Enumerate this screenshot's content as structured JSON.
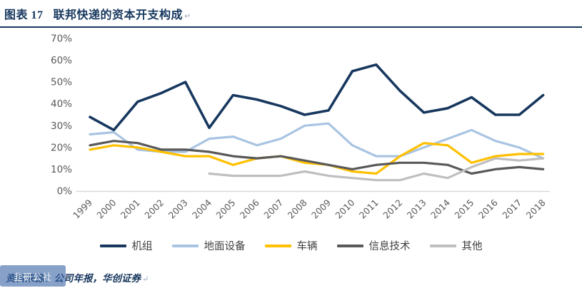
{
  "header": {
    "label": "图表  17",
    "title": "联邦快递的资本开支构成",
    "paragraph_mark": "↵",
    "accent_color": "#17375e"
  },
  "chart_data": {
    "type": "line",
    "title": "联邦快递的资本开支构成",
    "x": [
      1999,
      2000,
      2001,
      2002,
      2003,
      2004,
      2005,
      2006,
      2007,
      2008,
      2009,
      2010,
      2011,
      2012,
      2013,
      2014,
      2015,
      2016,
      2017,
      2018
    ],
    "ylim": [
      0,
      70
    ],
    "y_ticks": [
      "0%",
      "10%",
      "20%",
      "30%",
      "40%",
      "50%",
      "60%",
      "70%"
    ],
    "grid": false,
    "legend_position": "bottom",
    "tick_color": "#595959",
    "axis_color": "#d9d9d9",
    "series": [
      {
        "id": "aircraft",
        "name": "机组",
        "color": "#17375e",
        "width": 3.6,
        "values": [
          34,
          28,
          41,
          45,
          50,
          29,
          44,
          42,
          39,
          35,
          37,
          55,
          58,
          46,
          36,
          38,
          43,
          35,
          35,
          44
        ]
      },
      {
        "id": "ground-equipment",
        "name": "地面设备",
        "color": "#a9c4e2",
        "width": 3.2,
        "values": [
          26,
          27,
          19,
          18,
          18,
          24,
          25,
          21,
          24,
          30,
          31,
          21,
          16,
          16,
          20,
          24,
          28,
          23,
          20,
          15
        ]
      },
      {
        "id": "vehicles",
        "name": "车辆",
        "color": "#ffc000",
        "width": 3.2,
        "values": [
          19,
          21,
          20,
          18,
          16,
          16,
          12,
          15,
          16,
          13,
          12,
          9,
          8,
          16,
          22,
          21,
          13,
          16,
          17,
          17
        ]
      },
      {
        "id": "it",
        "name": "信息技术",
        "color": "#595959",
        "width": 3.2,
        "values": [
          21,
          23,
          22,
          19,
          19,
          18,
          16,
          15,
          16,
          14,
          12,
          10,
          12,
          13,
          13,
          12,
          8,
          10,
          11,
          10
        ]
      },
      {
        "id": "other",
        "name": "其他",
        "color": "#bfbfbf",
        "width": 3.2,
        "values": [
          null,
          null,
          null,
          null,
          null,
          8,
          7,
          7,
          7,
          9,
          7,
          6,
          5,
          5,
          8,
          6,
          11,
          15,
          14,
          15
        ]
      }
    ]
  },
  "footer": {
    "source": "资料来源：公司年报，华创证券",
    "paragraph_mark": "↵"
  },
  "watermark": {
    "text": "韭研公社"
  }
}
